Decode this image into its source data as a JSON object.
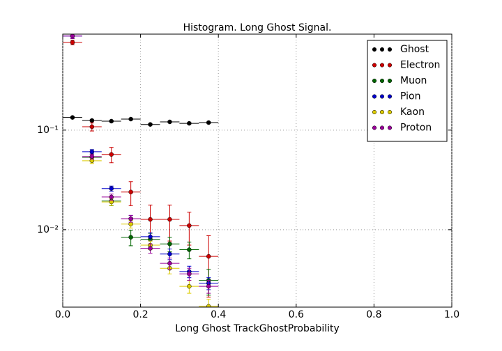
{
  "chart_data": {
    "type": "errorbar-histogram",
    "title": "Histogram. Long Ghost Signal.",
    "xlabel": "Long Ghost TrackGhostProbability",
    "bins": [
      0,
      0.05,
      0.1,
      0.15,
      0.2,
      0.25,
      0.3,
      0.35,
      0.4
    ],
    "series": [
      {
        "name": "Ghost",
        "color": "#000000",
        "values": [
          0.134,
          0.125,
          0.123,
          0.129,
          0.114,
          0.121,
          0.117,
          0.119
        ],
        "errors": [
          0.002,
          0.002,
          0.002,
          0.002,
          0.002,
          0.002,
          0.002,
          0.002
        ]
      },
      {
        "name": "Electron",
        "color": "#cc0000",
        "values": [
          0.76,
          0.108,
          0.057,
          0.0239,
          0.0127,
          0.0127,
          0.011,
          0.0054
        ],
        "errors": [
          0.04,
          0.01,
          0.01,
          0.0065,
          0.005,
          0.005,
          0.004,
          0.0033
        ]
      },
      {
        "name": "Muon",
        "color": "#006600",
        "values": [
          null,
          0.0533,
          0.0194,
          0.0084,
          0.008,
          0.0072,
          0.0063,
          0.0031
        ],
        "errors": [
          null,
          0.004,
          0.002,
          0.0015,
          0.0012,
          0.0012,
          0.0012,
          0.0009
        ]
      },
      {
        "name": "Pion",
        "color": "#0000cc",
        "values": [
          0.88,
          0.0607,
          0.0259,
          0.0129,
          0.0085,
          0.0057,
          0.0038,
          0.0029
        ],
        "errors": [
          0.05,
          0.003,
          0.0015,
          0.001,
          0.0008,
          0.0007,
          0.0005,
          0.0004
        ]
      },
      {
        "name": "Kaon",
        "color": "#ddcc00",
        "values": [
          null,
          0.0492,
          0.019,
          0.0114,
          0.007,
          0.0041,
          0.0027,
          0.0017
        ],
        "errors": [
          null,
          0.003,
          0.0015,
          0.001,
          0.0007,
          0.0005,
          0.0004,
          0.0003
        ]
      },
      {
        "name": "Proton",
        "color": "#990099",
        "values": [
          0.88,
          0.0542,
          0.0213,
          0.0129,
          0.0065,
          0.0046,
          0.0036,
          0.0027
        ],
        "errors": [
          0.05,
          0.003,
          0.0015,
          0.001,
          0.0007,
          0.0006,
          0.0005,
          0.0004
        ]
      }
    ],
    "xlim": [
      0,
      1
    ],
    "xticks": [
      {
        "value": 0,
        "label": "0.0"
      },
      0.2,
      0.4,
      0.6,
      0.8,
      {
        "value": 1,
        "label": "1.0"
      }
    ],
    "ylim": [
      0.00167,
      0.92
    ],
    "yticks": [
      {
        "value": 0.1,
        "label": "10⁻¹"
      },
      {
        "value": 0.01,
        "label": "10⁻²"
      }
    ],
    "ylog": true,
    "grid": true,
    "legend": "upper right"
  }
}
